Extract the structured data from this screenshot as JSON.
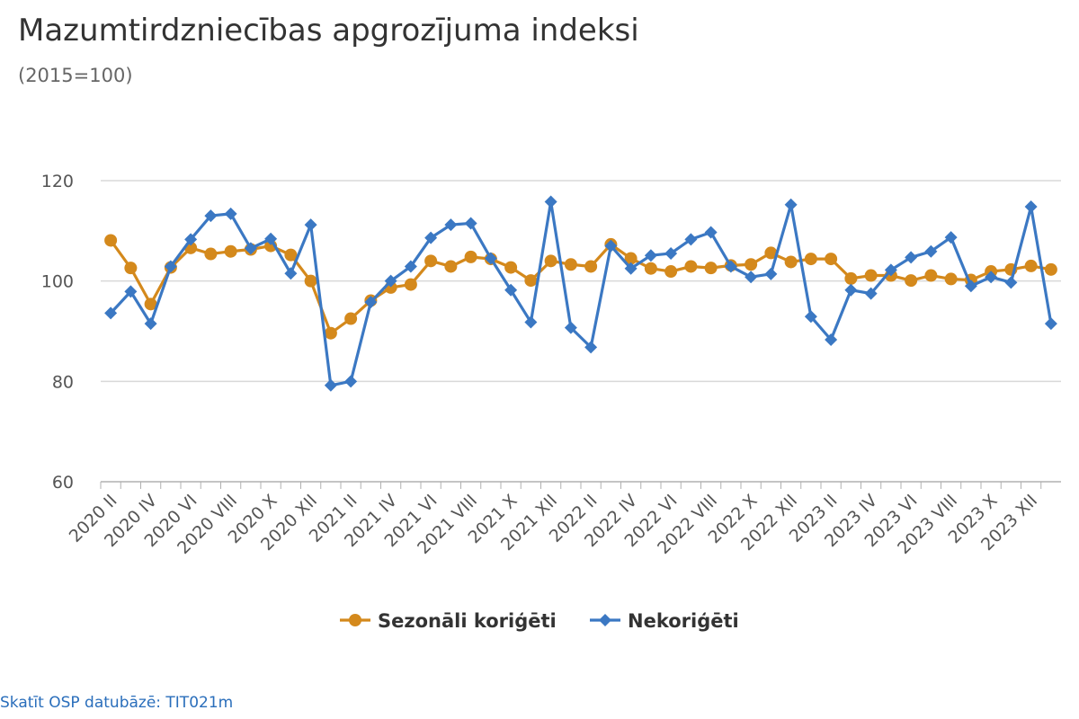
{
  "title": "Mazumtirdzniecības apgrozījuma indeksi",
  "subtitle": "(2015=100)",
  "source_link": "Skatīt OSP datubāzē: TIT021m",
  "colors": {
    "seasonal": "#d4891c",
    "unadjusted": "#3b78c3",
    "grid": "#d9d9d9",
    "axis": "#b0b0b0"
  },
  "chart_data": {
    "type": "line",
    "title": "Mazumtirdzniecības apgrozījuma indeksi",
    "subtitle": "(2015=100)",
    "xlabel": "",
    "ylabel": "",
    "ylim": [
      60,
      120
    ],
    "yticks": [
      60,
      80,
      100,
      120
    ],
    "grid": true,
    "legend_position": "bottom",
    "tick_labels": [
      "2020 II",
      "2020 IV",
      "2020 VI",
      "2020 VIII",
      "2020 X",
      "2020 XII",
      "2021 II",
      "2021 IV",
      "2021 VI",
      "2021 VIII",
      "2021 X",
      "2021 XII",
      "2022 II",
      "2022 IV",
      "2022 VI",
      "2022 VIII",
      "2022 X",
      "2022 XII",
      "2023 II",
      "2023 IV",
      "2023 VI",
      "2023 VIII",
      "2023 X",
      "2023 XII"
    ],
    "x": [
      "2020 II",
      "2020 III",
      "2020 IV",
      "2020 V",
      "2020 VI",
      "2020 VII",
      "2020 VIII",
      "2020 IX",
      "2020 X",
      "2020 XI",
      "2020 XII",
      "2021 I",
      "2021 II",
      "2021 III",
      "2021 IV",
      "2021 V",
      "2021 VI",
      "2021 VII",
      "2021 VIII",
      "2021 IX",
      "2021 X",
      "2021 XI",
      "2021 XII",
      "2022 I",
      "2022 II",
      "2022 III",
      "2022 IV",
      "2022 V",
      "2022 VI",
      "2022 VII",
      "2022 VIII",
      "2022 IX",
      "2022 X",
      "2022 XI",
      "2022 XII",
      "2023 I",
      "2023 II",
      "2023 III",
      "2023 IV",
      "2023 V",
      "2023 VI",
      "2023 VII",
      "2023 VIII",
      "2023 IX",
      "2023 X",
      "2023 XI",
      "2023 XII",
      "2024 I"
    ],
    "series": [
      {
        "name": "Sezonāli koriģēti",
        "marker": "circle",
        "values": [
          108.1,
          102.6,
          95.4,
          102.7,
          106.6,
          105.4,
          105.9,
          106.3,
          107.0,
          105.2,
          100.0,
          89.6,
          92.5,
          96.1,
          98.7,
          99.3,
          104.0,
          102.9,
          104.8,
          104.4,
          102.7,
          100.1,
          104.0,
          103.3,
          102.9,
          107.3,
          104.5,
          102.5,
          101.9,
          102.9,
          102.6,
          103.1,
          103.3,
          105.6,
          103.8,
          104.4,
          104.4,
          100.5,
          101.1,
          101.1,
          100.1,
          101.1,
          100.4,
          100.2,
          101.9,
          102.3,
          103.0,
          102.3
        ]
      },
      {
        "name": "Nekoriģēti",
        "marker": "diamond",
        "values": [
          93.6,
          97.9,
          91.5,
          102.9,
          108.3,
          113.0,
          113.4,
          106.5,
          108.4,
          101.5,
          111.2,
          79.2,
          80.0,
          95.8,
          100.0,
          102.9,
          108.6,
          111.2,
          111.5,
          104.5,
          98.2,
          91.8,
          115.8,
          90.7,
          86.8,
          107.0,
          102.5,
          105.1,
          105.5,
          108.3,
          109.7,
          102.9,
          100.8,
          101.4,
          115.2,
          92.9,
          88.3,
          98.2,
          97.5,
          102.2,
          104.7,
          105.9,
          108.7,
          99.0,
          100.8,
          99.7,
          114.8,
          91.5
        ]
      }
    ]
  }
}
